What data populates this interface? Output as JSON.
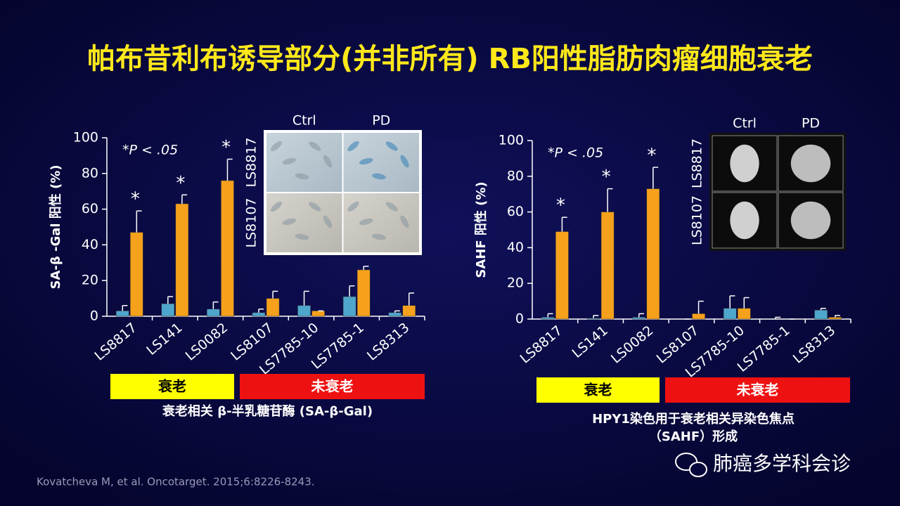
{
  "title": "帕布昔利布诱导部分(并非所有) RB阳性脂肪肉瘤细胞衰老",
  "citation": "Kovatcheva M, et al. Oncotarget. 2015;6:8226-8243.",
  "watermark": "肺癌多学科会诊",
  "chart_data": [
    {
      "type": "bar",
      "ylabel": "SA-β -Gal 阳性 (%)",
      "annotation": "*P < .05",
      "categories": [
        "LS8817",
        "LS141",
        "LS0082",
        "LS8107",
        "LS7785-10",
        "LS7785-1",
        "LS8313"
      ],
      "series": [
        {
          "color": "#4fa6cc",
          "values": [
            3,
            7,
            4,
            2,
            6,
            11,
            2
          ],
          "errors": [
            3,
            4,
            4,
            2,
            8,
            6,
            1
          ]
        },
        {
          "color": "#f5a11c",
          "values": [
            47,
            63,
            76,
            10,
            3,
            26,
            6
          ],
          "errors": [
            12,
            5,
            12,
            4,
            0,
            2,
            7
          ],
          "markers": [
            "*",
            "*",
            "*",
            null,
            null,
            null,
            null
          ]
        }
      ],
      "ylim": [
        0,
        100
      ],
      "yticks": [
        0,
        20,
        40,
        60,
        80,
        100
      ],
      "inset": {
        "columns": [
          "Ctrl",
          "PD"
        ],
        "rows": [
          "LS8817",
          "LS8107"
        ]
      },
      "groups": [
        {
          "label": "衰老",
          "color": "#ffff00"
        },
        {
          "label": "未衰老",
          "color": "#ee1111"
        }
      ],
      "caption": [
        "衰老相关 β-半乳糖苷酶 (SA-β-Gal)"
      ]
    },
    {
      "type": "bar",
      "ylabel": "SAHF 阳性 (%)",
      "annotation": "*P < .05",
      "categories": [
        "LS8817",
        "LS141",
        "LS0082",
        "LS8107",
        "LS7785-10",
        "LS7785-1",
        "LS8313"
      ],
      "series": [
        {
          "color": "#4fa6cc",
          "values": [
            1,
            0.5,
            1,
            0,
            6,
            0,
            5
          ],
          "errors": [
            2,
            1.5,
            2,
            0,
            7,
            1,
            1
          ]
        },
        {
          "color": "#f5a11c",
          "values": [
            49,
            60,
            73,
            3,
            6,
            0,
            1
          ],
          "errors": [
            8,
            13,
            12,
            7,
            6,
            0,
            1
          ],
          "markers": [
            "*",
            "*",
            "*",
            null,
            null,
            null,
            null
          ]
        }
      ],
      "ylim": [
        0,
        100
      ],
      "yticks": [
        0,
        20,
        40,
        60,
        80,
        100
      ],
      "inset": {
        "columns": [
          "Ctrl",
          "PD"
        ],
        "rows": [
          "LS8817",
          "LS8107"
        ]
      },
      "groups": [
        {
          "label": "衰老",
          "color": "#ffff00"
        },
        {
          "label": "未衰老",
          "color": "#ee1111"
        }
      ],
      "caption": [
        "HPY1染色用于衰老相关异染色焦点",
        "（SAHF）形成"
      ]
    }
  ]
}
